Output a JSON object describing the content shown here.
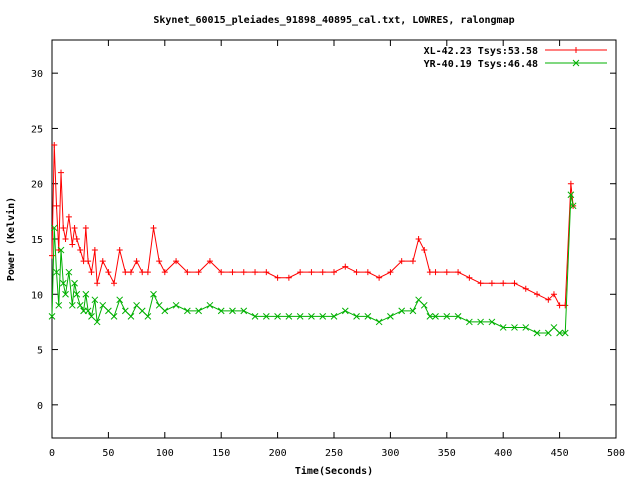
{
  "chart_data": {
    "type": "line",
    "title": "Skynet_60015_pleiades_91898_40895_cal.txt, LOWRES, ralongmap",
    "xlabel": "Time(Seconds)",
    "ylabel": "Power (Kelvin)",
    "xlim": [
      0,
      500
    ],
    "ylim": [
      -3,
      33
    ],
    "xticks": [
      "0",
      "50",
      "100",
      "150",
      "200",
      "250",
      "300",
      "350",
      "400",
      "450",
      "500"
    ],
    "yticks": [
      "0",
      "5",
      "10",
      "15",
      "20",
      "25",
      "30"
    ],
    "grid": false,
    "legend_position": "top-right",
    "series": [
      {
        "name": "XL-42.23 Tsys:53.58",
        "color": "#ff0000",
        "marker": "plus",
        "x": [
          0,
          2,
          4,
          6,
          8,
          10,
          12,
          15,
          18,
          20,
          22,
          25,
          28,
          30,
          32,
          35,
          38,
          40,
          45,
          50,
          55,
          60,
          65,
          70,
          75,
          80,
          85,
          90,
          95,
          100,
          110,
          120,
          130,
          140,
          150,
          160,
          170,
          180,
          190,
          200,
          210,
          220,
          230,
          240,
          250,
          260,
          270,
          280,
          290,
          300,
          310,
          320,
          325,
          330,
          335,
          340,
          350,
          360,
          370,
          380,
          390,
          400,
          410,
          420,
          430,
          440,
          445,
          450,
          455,
          460,
          462
        ],
        "y": [
          13.5,
          23.5,
          18,
          14,
          21,
          16,
          15,
          17,
          14.5,
          16,
          15,
          14,
          13,
          16,
          13,
          12,
          14,
          11,
          13,
          12,
          11,
          14,
          12,
          12,
          13,
          12,
          12,
          16,
          13,
          12,
          13,
          12,
          12,
          13,
          12,
          12,
          12,
          12,
          12,
          11.5,
          11.5,
          12,
          12,
          12,
          12,
          12.5,
          12,
          12,
          11.5,
          12,
          13,
          13,
          15,
          14,
          12,
          12,
          12,
          12,
          11.5,
          11,
          11,
          11,
          11,
          10.5,
          10,
          9.5,
          10,
          9,
          9,
          20,
          18
        ]
      },
      {
        "name": "YR-40.19 Tsys:46.48",
        "color": "#00b000",
        "marker": "cross",
        "x": [
          0,
          2,
          4,
          6,
          8,
          10,
          12,
          15,
          18,
          20,
          22,
          25,
          28,
          30,
          32,
          35,
          38,
          40,
          45,
          50,
          55,
          60,
          65,
          70,
          75,
          80,
          85,
          90,
          95,
          100,
          110,
          120,
          130,
          140,
          150,
          160,
          170,
          180,
          190,
          200,
          210,
          220,
          230,
          240,
          250,
          260,
          270,
          280,
          290,
          300,
          310,
          320,
          325,
          330,
          335,
          340,
          350,
          360,
          370,
          380,
          390,
          400,
          410,
          420,
          430,
          440,
          445,
          450,
          455,
          460,
          462
        ],
        "y": [
          8,
          16,
          12,
          9,
          14,
          11,
          10,
          12,
          9,
          11,
          10,
          9,
          8.5,
          10,
          8.5,
          8,
          9.5,
          7.5,
          9,
          8.5,
          8,
          9.5,
          8.5,
          8,
          9,
          8.5,
          8,
          10,
          9,
          8.5,
          9,
          8.5,
          8.5,
          9,
          8.5,
          8.5,
          8.5,
          8,
          8,
          8,
          8,
          8,
          8,
          8,
          8,
          8.5,
          8,
          8,
          7.5,
          8,
          8.5,
          8.5,
          9.5,
          9,
          8,
          8,
          8,
          8,
          7.5,
          7.5,
          7.5,
          7,
          7,
          7,
          6.5,
          6.5,
          7,
          6.5,
          6.5,
          19,
          18
        ]
      }
    ]
  }
}
